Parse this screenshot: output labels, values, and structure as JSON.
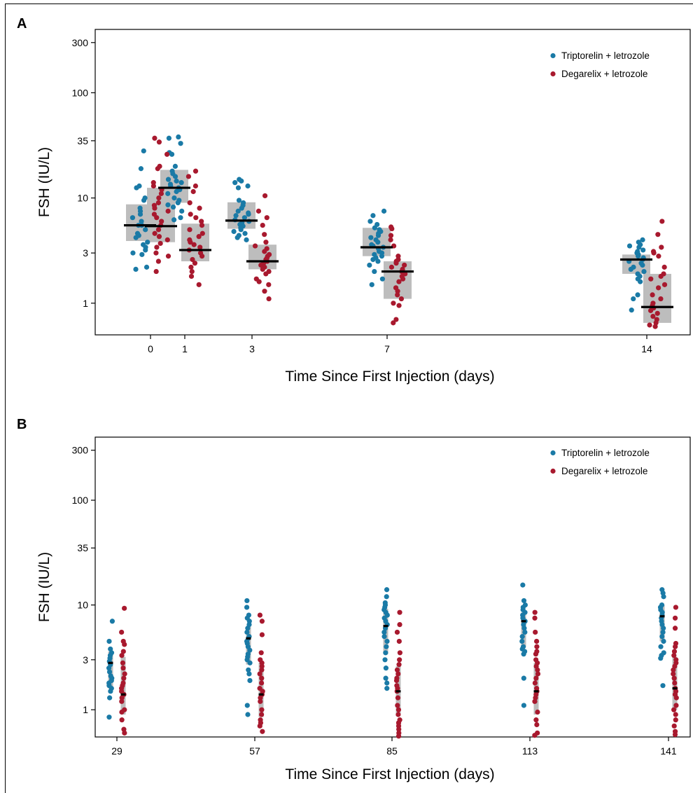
{
  "chart_data": [
    {
      "panel": "A",
      "type": "scatter",
      "xlabel": "Time Since First Injection (days)",
      "ylabel": "FSH (IU/L)",
      "y_scale": "log",
      "ylim": [
        0.5,
        400
      ],
      "y_ticks": [
        "1",
        "3",
        "10",
        "35",
        "100",
        "300"
      ],
      "x_ticks": [
        "0",
        "1",
        "3",
        "7",
        "14"
      ],
      "legend": "top-right",
      "grid": false,
      "series": [
        {
          "name": "Triptorelin + letrozole",
          "color": "#1a7aa6",
          "groups": [
            {
              "x": "0",
              "median": 5.5,
              "q1": 3.9,
              "q3": 8.7,
              "points": [
                28,
                19,
                13,
                12.5,
                10,
                9.5,
                8,
                7.5,
                7,
                6.5,
                6,
                5.5,
                5.5,
                5,
                4.6,
                4.4,
                4.2,
                3.8,
                3.6,
                3.4,
                3.2,
                3,
                2.9,
                2.2,
                2.1
              ]
            },
            {
              "x": "1",
              "median": 12.5,
              "q1": 9,
              "q3": 18.5,
              "points": [
                38,
                37,
                33,
                27,
                26,
                20,
                18,
                17,
                16,
                15,
                14.5,
                14,
                13.5,
                13,
                12.5,
                12,
                11.5,
                11,
                10,
                9.5,
                9,
                8.6,
                8.2,
                7.5,
                6.5,
                6.2
              ]
            },
            {
              "x": "3",
              "median": 6.1,
              "q1": 5.1,
              "q3": 9.1,
              "points": [
                15,
                14.5,
                14,
                13,
                12.5,
                9.5,
                9,
                8.5,
                8,
                7.5,
                7.2,
                7,
                6.8,
                6.5,
                6.2,
                6,
                5.8,
                5.6,
                5.4,
                5.2,
                5,
                4.8,
                4.6,
                4.4,
                4.2,
                4
              ]
            },
            {
              "x": "7",
              "median": 3.4,
              "q1": 2.8,
              "q3": 5.2,
              "points": [
                7.5,
                6.8,
                6,
                5.6,
                5.2,
                5,
                4.8,
                4.6,
                4.4,
                4.2,
                4,
                3.8,
                3.6,
                3.5,
                3.4,
                3.3,
                3.1,
                3,
                2.9,
                2.8,
                2.7,
                2.6,
                2.5,
                2.3,
                2,
                1.7,
                1.5
              ]
            },
            {
              "x": "14",
              "median": 2.6,
              "q1": 1.9,
              "q3": 2.9,
              "points": [
                4,
                3.8,
                3.6,
                3.5,
                3.4,
                3.2,
                3.1,
                3,
                2.9,
                2.8,
                2.7,
                2.6,
                2.5,
                2.4,
                2.3,
                2.2,
                2.1,
                2,
                1.9,
                1.8,
                1.7,
                1.6,
                1.2,
                1.1,
                0.86
              ]
            }
          ]
        },
        {
          "name": "Degarelix + letrozole",
          "color": "#a8192e",
          "groups": [
            {
              "x": "0",
              "median": 5.4,
              "q1": 3.8,
              "q3": 12.5,
              "points": [
                37,
                34,
                26,
                20,
                19,
                14,
                13,
                12,
                11,
                10,
                9,
                8.5,
                8,
                7.5,
                7,
                6.5,
                6,
                5.5,
                5,
                4.6,
                4.3,
                4,
                3.7,
                3.4,
                3,
                2.8,
                2.5,
                2
              ]
            },
            {
              "x": "1",
              "median": 3.2,
              "q1": 2.5,
              "q3": 5.7,
              "points": [
                18,
                16,
                13,
                11.5,
                9,
                8,
                7,
                6.5,
                6,
                5.5,
                5,
                4.6,
                4.3,
                4,
                3.8,
                3.6,
                3.4,
                3.2,
                3,
                2.8,
                2.6,
                2.4,
                2.2,
                2,
                1.8,
                1.5
              ]
            },
            {
              "x": "3",
              "median": 2.5,
              "q1": 2.1,
              "q3": 3.6,
              "points": [
                10.5,
                7.5,
                6.5,
                5.5,
                4.5,
                3.8,
                3.5,
                3.3,
                3.1,
                2.9,
                2.8,
                2.7,
                2.6,
                2.5,
                2.4,
                2.3,
                2.2,
                2.1,
                2,
                1.9,
                1.7,
                1.6,
                1.5,
                1.3,
                1.1
              ]
            },
            {
              "x": "7",
              "median": 2,
              "q1": 1.1,
              "q3": 2.5,
              "points": [
                5.3,
                5.1,
                4.4,
                4,
                3.5,
                2.8,
                2.6,
                2.5,
                2.4,
                2.3,
                2.2,
                2.1,
                2,
                1.9,
                1.8,
                1.7,
                1.6,
                1.4,
                1.3,
                1.2,
                1.1,
                1,
                0.95,
                0.7,
                0.65
              ]
            },
            {
              "x": "14",
              "median": 0.92,
              "q1": 0.65,
              "q3": 1.9,
              "points": [
                6,
                4.5,
                3.4,
                3.1,
                3,
                2.8,
                2.2,
                1.9,
                1.8,
                1.7,
                1.5,
                1.4,
                1.2,
                1.1,
                1,
                0.95,
                0.9,
                0.85,
                0.8,
                0.75,
                0.7,
                0.65,
                0.62,
                0.6
              ]
            }
          ]
        }
      ]
    },
    {
      "panel": "B",
      "type": "scatter",
      "xlabel": "Time Since First Injection (days)",
      "ylabel": "FSH (IU/L)",
      "y_scale": "log",
      "ylim": [
        0.55,
        400
      ],
      "y_ticks": [
        "1",
        "3",
        "10",
        "35",
        "100",
        "300"
      ],
      "x_ticks": [
        "29",
        "57",
        "85",
        "113",
        "141"
      ],
      "legend": "top-right",
      "grid": false,
      "series": [
        {
          "name": "Triptorelin + letrozole",
          "color": "#1a7aa6",
          "groups": [
            {
              "x": "29",
              "median": 2.8,
              "q1": 1.6,
              "q3": 3.6,
              "points": [
                7,
                4.5,
                3.8,
                3.5,
                3.3,
                3.1,
                2.9,
                2.8,
                2.7,
                2.5,
                2.3,
                2.1,
                2,
                1.9,
                1.8,
                1.7,
                1.6,
                1.5,
                1.3,
                0.85
              ]
            },
            {
              "x": "57",
              "median": 4.8,
              "q1": 2.7,
              "q3": 6.2,
              "points": [
                11,
                9.5,
                8,
                7.5,
                7,
                6.5,
                6,
                5.5,
                5,
                4.8,
                4.5,
                4.3,
                4,
                3.7,
                3.4,
                3.2,
                3,
                2.8,
                2.4,
                2.2,
                1.9,
                1.1,
                0.9
              ]
            },
            {
              "x": "85",
              "median": 6.3,
              "q1": 3.4,
              "q3": 9.2,
              "points": [
                14,
                12,
                10.5,
                10,
                9.5,
                9,
                8.5,
                8,
                7.5,
                7,
                6.5,
                6,
                5.5,
                5,
                4.5,
                4,
                3.5,
                3,
                2.5,
                2,
                1.8,
                1.6
              ]
            },
            {
              "x": "113",
              "median": 7,
              "q1": 4,
              "q3": 8.5,
              "points": [
                15.5,
                11,
                10,
                9.5,
                9,
                8.5,
                8,
                7.5,
                7,
                6.5,
                6,
                5.5,
                5,
                4.5,
                4,
                3.8,
                3.6,
                3.4,
                2,
                1.1
              ]
            },
            {
              "x": "141",
              "median": 7.8,
              "q1": 4.5,
              "q3": 10,
              "points": [
                14,
                13,
                12,
                10,
                9.5,
                9,
                8.5,
                8,
                7.5,
                7,
                6.5,
                6,
                5.5,
                5,
                4.5,
                4,
                3.5,
                3.3,
                3.1,
                1.7
              ]
            }
          ]
        },
        {
          "name": "Degarelix + letrozole",
          "color": "#a8192e",
          "groups": [
            {
              "x": "29",
              "median": 1.4,
              "q1": 0.9,
              "q3": 3.2,
              "points": [
                9.3,
                5.5,
                4.5,
                4.2,
                3.6,
                3.3,
                2.8,
                2.5,
                2.2,
                2,
                1.8,
                1.7,
                1.6,
                1.5,
                1.4,
                1.3,
                1.2,
                1,
                0.95,
                0.8,
                0.65,
                0.6
              ]
            },
            {
              "x": "57",
              "median": 1.4,
              "q1": 0.85,
              "q3": 2.8,
              "points": [
                8,
                7,
                5.2,
                3.5,
                3,
                2.8,
                2.6,
                2.4,
                2.2,
                2,
                1.8,
                1.6,
                1.5,
                1.4,
                1.3,
                1.2,
                1,
                0.9,
                0.8,
                0.75,
                0.7,
                0.62
              ]
            },
            {
              "x": "85",
              "median": 1.5,
              "q1": 0.9,
              "q3": 2.6,
              "points": [
                8.5,
                6.5,
                5.5,
                4.5,
                3.5,
                3,
                2.7,
                2.4,
                2.2,
                2,
                1.9,
                1.7,
                1.6,
                1.5,
                1.3,
                1.1,
                1,
                0.9,
                0.8,
                0.75,
                0.7,
                0.65,
                0.6,
                0.56
              ]
            },
            {
              "x": "113",
              "median": 1.5,
              "q1": 0.9,
              "q3": 2.8,
              "points": [
                8.5,
                7.5,
                5.5,
                4.5,
                4,
                3.6,
                3.4,
                3,
                2.8,
                2.6,
                2.4,
                2.2,
                2,
                1.8,
                1.6,
                1.5,
                1.4,
                1.3,
                1.2,
                0.95,
                0.8,
                0.72,
                0.6,
                0.57
              ]
            },
            {
              "x": "141",
              "median": 1.6,
              "q1": 1,
              "q3": 3.2,
              "points": [
                9.5,
                7.5,
                6,
                4.3,
                4,
                3.6,
                3.3,
                3,
                2.8,
                2.6,
                2.4,
                2.2,
                2,
                1.8,
                1.6,
                1.5,
                1.4,
                1.3,
                1.1,
                1,
                0.9,
                0.8,
                0.7,
                0.62,
                0.58
              ]
            }
          ]
        }
      ]
    }
  ]
}
